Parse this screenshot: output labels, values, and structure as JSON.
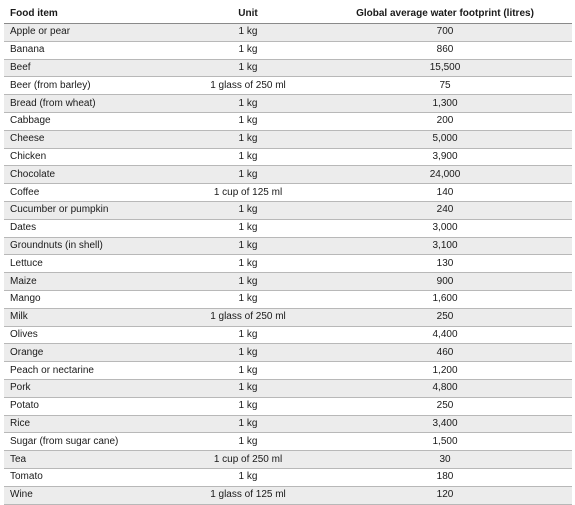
{
  "table": {
    "headers": {
      "food": "Food item",
      "unit": "Unit",
      "footprint": "Global average water footprint (litres)"
    },
    "rows": [
      {
        "food": "Apple or pear",
        "unit": "1 kg",
        "footprint": "700"
      },
      {
        "food": "Banana",
        "unit": "1 kg",
        "footprint": "860"
      },
      {
        "food": "Beef",
        "unit": "1 kg",
        "footprint": "15,500"
      },
      {
        "food": "Beer (from barley)",
        "unit": "1 glass of 250 ml",
        "footprint": "75"
      },
      {
        "food": "Bread (from wheat)",
        "unit": "1 kg",
        "footprint": "1,300"
      },
      {
        "food": "Cabbage",
        "unit": "1 kg",
        "footprint": "200"
      },
      {
        "food": "Cheese",
        "unit": "1 kg",
        "footprint": "5,000"
      },
      {
        "food": "Chicken",
        "unit": "1 kg",
        "footprint": "3,900"
      },
      {
        "food": "Chocolate",
        "unit": "1 kg",
        "footprint": "24,000"
      },
      {
        "food": "Coffee",
        "unit": "1 cup of 125 ml",
        "footprint": "140"
      },
      {
        "food": "Cucumber or pumpkin",
        "unit": "1 kg",
        "footprint": "240"
      },
      {
        "food": "Dates",
        "unit": "1 kg",
        "footprint": "3,000"
      },
      {
        "food": "Groundnuts (in shell)",
        "unit": "1 kg",
        "footprint": "3,100"
      },
      {
        "food": "Lettuce",
        "unit": "1 kg",
        "footprint": "130"
      },
      {
        "food": "Maize",
        "unit": "1 kg",
        "footprint": "900"
      },
      {
        "food": "Mango",
        "unit": "1 kg",
        "footprint": "1,600"
      },
      {
        "food": "Milk",
        "unit": "1 glass of 250 ml",
        "footprint": "250"
      },
      {
        "food": "Olives",
        "unit": "1 kg",
        "footprint": "4,400"
      },
      {
        "food": "Orange",
        "unit": "1 kg",
        "footprint": "460"
      },
      {
        "food": "Peach or nectarine",
        "unit": "1 kg",
        "footprint": "1,200"
      },
      {
        "food": "Pork",
        "unit": "1 kg",
        "footprint": "4,800"
      },
      {
        "food": "Potato",
        "unit": "1 kg",
        "footprint": "250"
      },
      {
        "food": "Rice",
        "unit": "1 kg",
        "footprint": "3,400"
      },
      {
        "food": "Sugar (from sugar cane)",
        "unit": "1 kg",
        "footprint": "1,500"
      },
      {
        "food": "Tea",
        "unit": "1 cup of 250 ml",
        "footprint": "30"
      },
      {
        "food": "Tomato",
        "unit": "1 kg",
        "footprint": "180"
      },
      {
        "food": "Wine",
        "unit": "1 glass of 125 ml",
        "footprint": "120"
      }
    ]
  }
}
